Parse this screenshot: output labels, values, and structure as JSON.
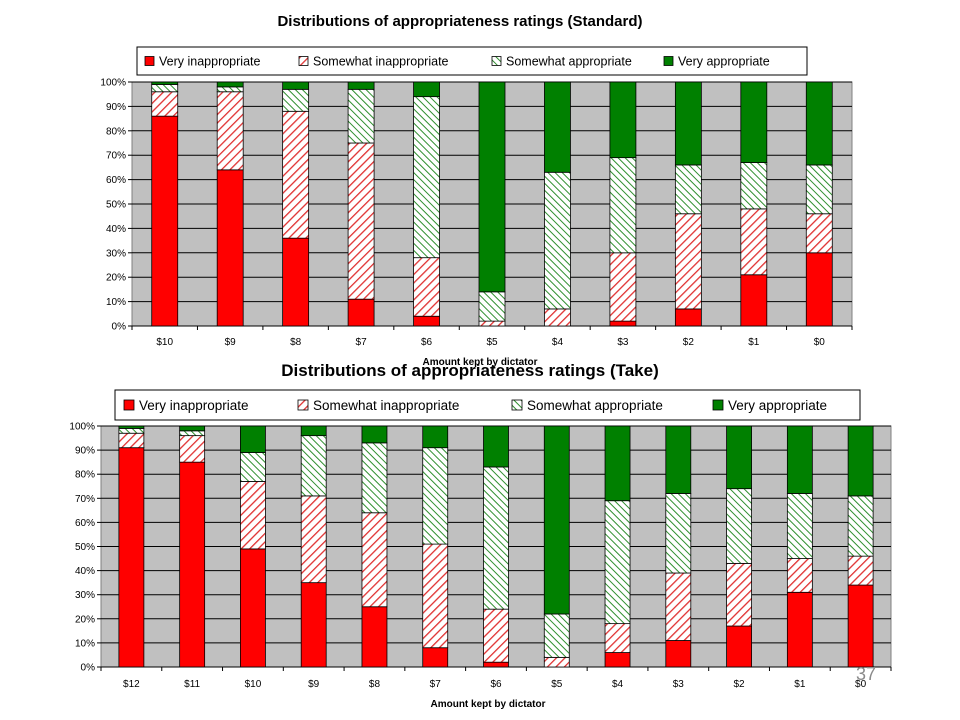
{
  "colors": {
    "very_inappropriate": "#ff0000",
    "somewhat_inappropriate": "#ff9999",
    "somewhat_appropriate": "#a8dca8",
    "very_appropriate": "#008000",
    "plot_bg": "#c0c0c0"
  },
  "icons": [
    "red-hatch-pattern",
    "green-hatch-pattern"
  ],
  "chart_data": [
    {
      "type": "bar",
      "stacked": "percent",
      "title": "Distributions of appropriateness ratings (Standard)",
      "xlabel": "Amount kept by dictator",
      "ylabel": "",
      "ylim": [
        0,
        100
      ],
      "yticks": [
        "0%",
        "10%",
        "20%",
        "30%",
        "40%",
        "50%",
        "60%",
        "70%",
        "80%",
        "90%",
        "100%"
      ],
      "legend_position": "top",
      "grid": true,
      "categories": [
        "$10",
        "$9",
        "$8",
        "$7",
        "$6",
        "$5",
        "$4",
        "$3",
        "$2",
        "$1",
        "$0"
      ],
      "series": [
        {
          "name": "Very inappropriate",
          "values": [
            86,
            64,
            36,
            11,
            4,
            0,
            0,
            2,
            7,
            21,
            30
          ]
        },
        {
          "name": "Somewhat inappropriate",
          "values": [
            10,
            32,
            52,
            64,
            24,
            2,
            7,
            28,
            39,
            27,
            16
          ]
        },
        {
          "name": "Somewhat appropriate",
          "values": [
            3,
            2,
            9,
            22,
            66,
            12,
            56,
            39,
            20,
            19,
            20
          ]
        },
        {
          "name": "Very appropriate",
          "values": [
            1,
            2,
            3,
            3,
            6,
            86,
            37,
            31,
            34,
            33,
            34
          ]
        }
      ]
    },
    {
      "type": "bar",
      "stacked": "percent",
      "title": "Distributions of appropriateness ratings (Take)",
      "xlabel": "Amount kept by dictator",
      "ylabel": "",
      "ylim": [
        0,
        100
      ],
      "yticks": [
        "0%",
        "10%",
        "20%",
        "30%",
        "40%",
        "50%",
        "60%",
        "70%",
        "80%",
        "90%",
        "100%"
      ],
      "legend_position": "top",
      "grid": true,
      "categories": [
        "$12",
        "$11",
        "$10",
        "$9",
        "$8",
        "$7",
        "$6",
        "$5",
        "$4",
        "$3",
        "$2",
        "$1",
        "$0"
      ],
      "series": [
        {
          "name": "Very inappropriate",
          "values": [
            91,
            85,
            49,
            35,
            25,
            8,
            2,
            0,
            6,
            11,
            17,
            31,
            34
          ]
        },
        {
          "name": "Somewhat inappropriate",
          "values": [
            6,
            11,
            28,
            36,
            39,
            43,
            22,
            4,
            12,
            28,
            26,
            14,
            12
          ]
        },
        {
          "name": "Somewhat appropriate",
          "values": [
            2,
            2,
            12,
            25,
            29,
            40,
            59,
            18,
            51,
            33,
            31,
            27,
            25
          ]
        },
        {
          "name": "Very appropriate",
          "values": [
            1,
            2,
            11,
            4,
            7,
            9,
            17,
            78,
            31,
            28,
            26,
            28,
            29
          ]
        }
      ]
    }
  ],
  "footer": {
    "page_number": "37"
  }
}
